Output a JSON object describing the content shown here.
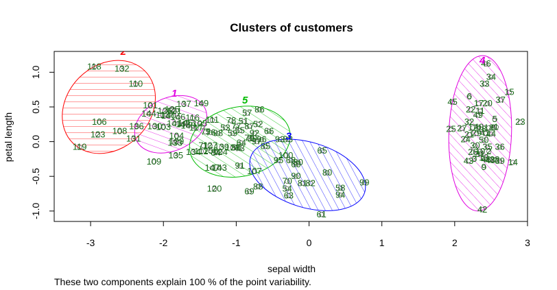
{
  "chart_data": {
    "type": "scatter",
    "title": "Clusters of customers",
    "xlabel": "sepal width",
    "ylabel": "petal length",
    "subtitle": "These two components explain 100 % of the point variability.",
    "xlim": [
      -3.5,
      3.0
    ],
    "ylim": [
      -1.15,
      1.3
    ],
    "x_ticks": [
      -3,
      -2,
      -1,
      0,
      1,
      2,
      3
    ],
    "y_ticks": [
      -1.0,
      -0.5,
      0.0,
      0.5,
      1.0
    ],
    "point_color": "#1a6b1a",
    "clusters": [
      {
        "label": "2",
        "color": "#ff0000",
        "center": [
          -2.75,
          0.5
        ],
        "rx": 0.7,
        "ry": 0.6,
        "angle": 45,
        "label_pos": [
          -2.55,
          1.25
        ]
      },
      {
        "label": "1",
        "color": "#e000e0",
        "center": [
          -1.9,
          0.25
        ],
        "rx": 0.52,
        "ry": 0.38,
        "angle": 25,
        "label_pos": [
          -1.85,
          0.65
        ]
      },
      {
        "label": "5",
        "color": "#00bb00",
        "center": [
          -0.95,
          0.0
        ],
        "rx": 0.7,
        "ry": 0.5,
        "angle": 12,
        "label_pos": [
          -0.88,
          0.55
        ]
      },
      {
        "label": "3",
        "color": "#0000ff",
        "center": [
          -0.02,
          -0.48
        ],
        "rx": 0.82,
        "ry": 0.47,
        "angle": -17,
        "label_pos": [
          -0.28,
          0.03
        ]
      },
      {
        "label": "4",
        "color": "#e000e0",
        "center": [
          2.35,
          0.12
        ],
        "rx": 0.43,
        "ry": 1.12,
        "angle": -2,
        "label_pos": [
          2.38,
          1.12
        ]
      }
    ],
    "points": [
      {
        "id": "118",
        "x": -2.95,
        "y": 1.08
      },
      {
        "id": "132",
        "x": -2.57,
        "y": 1.05
      },
      {
        "id": "110",
        "x": -2.38,
        "y": 0.83
      },
      {
        "id": "106",
        "x": -2.88,
        "y": 0.28
      },
      {
        "id": "123",
        "x": -2.9,
        "y": 0.1
      },
      {
        "id": "108",
        "x": -2.6,
        "y": 0.15
      },
      {
        "id": "119",
        "x": -3.15,
        "y": -0.08
      },
      {
        "id": "131",
        "x": -2.41,
        "y": 0.04
      },
      {
        "id": "136",
        "x": -2.37,
        "y": 0.22
      },
      {
        "id": "101",
        "x": -2.18,
        "y": 0.52
      },
      {
        "id": "144",
        "x": -2.2,
        "y": 0.4
      },
      {
        "id": "126",
        "x": -1.98,
        "y": 0.44
      },
      {
        "id": "125",
        "x": -1.88,
        "y": 0.46
      },
      {
        "id": "121",
        "x": -1.85,
        "y": 0.44
      },
      {
        "id": "137",
        "x": -1.72,
        "y": 0.54
      },
      {
        "id": "149",
        "x": -1.48,
        "y": 0.55
      },
      {
        "id": "113",
        "x": -2.01,
        "y": 0.38
      },
      {
        "id": "140",
        "x": -1.93,
        "y": 0.37
      },
      {
        "id": "146",
        "x": -1.8,
        "y": 0.35
      },
      {
        "id": "130",
        "x": -2.12,
        "y": 0.22
      },
      {
        "id": "103",
        "x": -2.0,
        "y": 0.21
      },
      {
        "id": "141",
        "x": -1.85,
        "y": 0.26
      },
      {
        "id": "145",
        "x": -1.7,
        "y": 0.27
      },
      {
        "id": "116",
        "x": -1.6,
        "y": 0.34
      },
      {
        "id": "142",
        "x": -1.73,
        "y": 0.25
      },
      {
        "id": "148",
        "x": -1.66,
        "y": 0.23
      },
      {
        "id": "117",
        "x": -1.55,
        "y": 0.2
      },
      {
        "id": "104",
        "x": -1.82,
        "y": 0.08
      },
      {
        "id": "129",
        "x": -1.82,
        "y": 0.0
      },
      {
        "id": "133",
        "x": -1.84,
        "y": -0.02
      },
      {
        "id": "135",
        "x": -1.83,
        "y": -0.2
      },
      {
        "id": "109",
        "x": -2.13,
        "y": -0.29
      },
      {
        "id": "111",
        "x": -1.33,
        "y": 0.31
      },
      {
        "id": "105",
        "x": -1.5,
        "y": 0.26
      },
      {
        "id": "78",
        "x": -1.07,
        "y": 0.3
      },
      {
        "id": "51",
        "x": -0.9,
        "y": 0.29
      },
      {
        "id": "52",
        "x": -0.7,
        "y": 0.25
      },
      {
        "id": "53",
        "x": -1.15,
        "y": 0.2
      },
      {
        "id": "57",
        "x": -0.85,
        "y": 0.41
      },
      {
        "id": "86",
        "x": -0.68,
        "y": 0.46
      },
      {
        "id": "87",
        "x": -0.82,
        "y": 0.22
      },
      {
        "id": "66",
        "x": -0.55,
        "y": 0.15
      },
      {
        "id": "77",
        "x": -1.0,
        "y": 0.22
      },
      {
        "id": "55",
        "x": -0.95,
        "y": 0.16
      },
      {
        "id": "59",
        "x": -1.05,
        "y": 0.12
      },
      {
        "id": "76",
        "x": -1.35,
        "y": 0.13
      },
      {
        "id": "75",
        "x": -1.42,
        "y": 0.14
      },
      {
        "id": "98",
        "x": -1.25,
        "y": 0.12
      },
      {
        "id": "92",
        "x": -0.75,
        "y": 0.12
      },
      {
        "id": "89",
        "x": -0.78,
        "y": 0.04
      },
      {
        "id": "96",
        "x": -0.65,
        "y": 0.03
      },
      {
        "id": "97",
        "x": -0.72,
        "y": 0.0
      },
      {
        "id": "79",
        "x": -0.82,
        "y": 0.05
      },
      {
        "id": "71",
        "x": -1.45,
        "y": -0.06
      },
      {
        "id": "127",
        "x": -1.36,
        "y": -0.06
      },
      {
        "id": "139",
        "x": -1.2,
        "y": -0.08
      },
      {
        "id": "128",
        "x": -1.05,
        "y": -0.09
      },
      {
        "id": "124",
        "x": -1.22,
        "y": -0.15
      },
      {
        "id": "150",
        "x": -1.35,
        "y": -0.13
      },
      {
        "id": "84",
        "x": -1.28,
        "y": -0.16
      },
      {
        "id": "112",
        "x": -1.48,
        "y": -0.14
      },
      {
        "id": "134",
        "x": -1.59,
        "y": -0.15
      },
      {
        "id": "73",
        "x": -0.95,
        "y": -0.1
      },
      {
        "id": "64",
        "x": -0.93,
        "y": -0.02
      },
      {
        "id": "147",
        "x": -1.33,
        "y": -0.38
      },
      {
        "id": "143",
        "x": -1.23,
        "y": -0.38
      },
      {
        "id": "120",
        "x": -1.3,
        "y": -0.68
      },
      {
        "id": "107",
        "x": -0.75,
        "y": -0.43
      },
      {
        "id": "91",
        "x": -0.95,
        "y": -0.35
      },
      {
        "id": "56",
        "x": -1.0,
        "y": -0.09
      },
      {
        "id": "85",
        "x": -0.6,
        "y": -0.07
      },
      {
        "id": "93",
        "x": -0.4,
        "y": 0.03
      },
      {
        "id": "83",
        "x": -0.29,
        "y": 0.03
      },
      {
        "id": "100",
        "x": -0.32,
        "y": -0.2
      },
      {
        "id": "95",
        "x": -0.42,
        "y": -0.27
      },
      {
        "id": "68",
        "x": -0.25,
        "y": -0.27
      },
      {
        "id": "80",
        "x": -0.15,
        "y": -0.3
      },
      {
        "id": "60",
        "x": -0.18,
        "y": -0.33
      },
      {
        "id": "65",
        "x": 0.18,
        "y": -0.13
      },
      {
        "id": "80",
        "x": 0.25,
        "y": -0.45
      },
      {
        "id": "90",
        "x": -0.18,
        "y": -0.5
      },
      {
        "id": "82",
        "x": 0.02,
        "y": -0.6
      },
      {
        "id": "70",
        "x": -0.3,
        "y": -0.57
      },
      {
        "id": "54",
        "x": -0.3,
        "y": -0.68
      },
      {
        "id": "63",
        "x": -0.28,
        "y": -0.78
      },
      {
        "id": "81",
        "x": -0.09,
        "y": -0.6
      },
      {
        "id": "88",
        "x": -0.7,
        "y": -0.65
      },
      {
        "id": "69",
        "x": -0.82,
        "y": -0.72
      },
      {
        "id": "58",
        "x": 0.43,
        "y": -0.67
      },
      {
        "id": "94",
        "x": 0.43,
        "y": -0.77
      },
      {
        "id": "99",
        "x": 0.76,
        "y": -0.59
      },
      {
        "id": "61",
        "x": 0.17,
        "y": -1.05
      },
      {
        "id": "46",
        "x": 2.43,
        "y": 1.12
      },
      {
        "id": "34",
        "x": 2.5,
        "y": 0.93
      },
      {
        "id": "33",
        "x": 2.41,
        "y": 0.83
      },
      {
        "id": "15",
        "x": 2.75,
        "y": 0.71
      },
      {
        "id": "37",
        "x": 2.63,
        "y": 0.6
      },
      {
        "id": "6",
        "x": 2.2,
        "y": 0.65
      },
      {
        "id": "45",
        "x": 1.97,
        "y": 0.57
      },
      {
        "id": "17",
        "x": 2.33,
        "y": 0.55
      },
      {
        "id": "20",
        "x": 2.45,
        "y": 0.55
      },
      {
        "id": "11",
        "x": 2.35,
        "y": 0.44
      },
      {
        "id": "49",
        "x": 2.32,
        "y": 0.38
      },
      {
        "id": "22",
        "x": 2.22,
        "y": 0.46
      },
      {
        "id": "32",
        "x": 2.2,
        "y": 0.28
      },
      {
        "id": "5",
        "x": 2.55,
        "y": 0.32
      },
      {
        "id": "23",
        "x": 2.9,
        "y": 0.28
      },
      {
        "id": "25",
        "x": 1.95,
        "y": 0.18
      },
      {
        "id": "27",
        "x": 2.1,
        "y": 0.19
      },
      {
        "id": "12",
        "x": 2.25,
        "y": 0.2
      },
      {
        "id": "40",
        "x": 2.33,
        "y": 0.21
      },
      {
        "id": "18",
        "x": 2.47,
        "y": 0.2
      },
      {
        "id": "8",
        "x": 2.53,
        "y": 0.2
      },
      {
        "id": "1",
        "x": 2.57,
        "y": 0.21
      },
      {
        "id": "28",
        "x": 2.37,
        "y": 0.18
      },
      {
        "id": "29",
        "x": 2.3,
        "y": 0.12
      },
      {
        "id": "41",
        "x": 2.42,
        "y": 0.12
      },
      {
        "id": "21",
        "x": 2.2,
        "y": 0.1
      },
      {
        "id": "44",
        "x": 2.5,
        "y": 0.11
      },
      {
        "id": "24",
        "x": 2.15,
        "y": 0.03
      },
      {
        "id": "50",
        "x": 2.4,
        "y": 0.02
      },
      {
        "id": "30",
        "x": 2.28,
        "y": -0.06
      },
      {
        "id": "36",
        "x": 2.62,
        "y": -0.08
      },
      {
        "id": "35",
        "x": 2.45,
        "y": -0.08
      },
      {
        "id": "26",
        "x": 2.25,
        "y": -0.15
      },
      {
        "id": "10",
        "x": 2.35,
        "y": -0.14
      },
      {
        "id": "2",
        "x": 2.47,
        "y": -0.14
      },
      {
        "id": "31",
        "x": 2.35,
        "y": -0.18
      },
      {
        "id": "13",
        "x": 2.4,
        "y": -0.23
      },
      {
        "id": "3",
        "x": 2.27,
        "y": -0.25
      },
      {
        "id": "46",
        "x": 2.43,
        "y": -0.26
      },
      {
        "id": "48",
        "x": 2.49,
        "y": -0.27
      },
      {
        "id": "38",
        "x": 2.55,
        "y": -0.26
      },
      {
        "id": "39",
        "x": 2.62,
        "y": -0.28
      },
      {
        "id": "14",
        "x": 2.8,
        "y": -0.3
      },
      {
        "id": "43",
        "x": 2.19,
        "y": -0.28
      },
      {
        "id": "9",
        "x": 2.4,
        "y": -0.37
      },
      {
        "id": "42",
        "x": 2.38,
        "y": -0.98
      }
    ]
  }
}
